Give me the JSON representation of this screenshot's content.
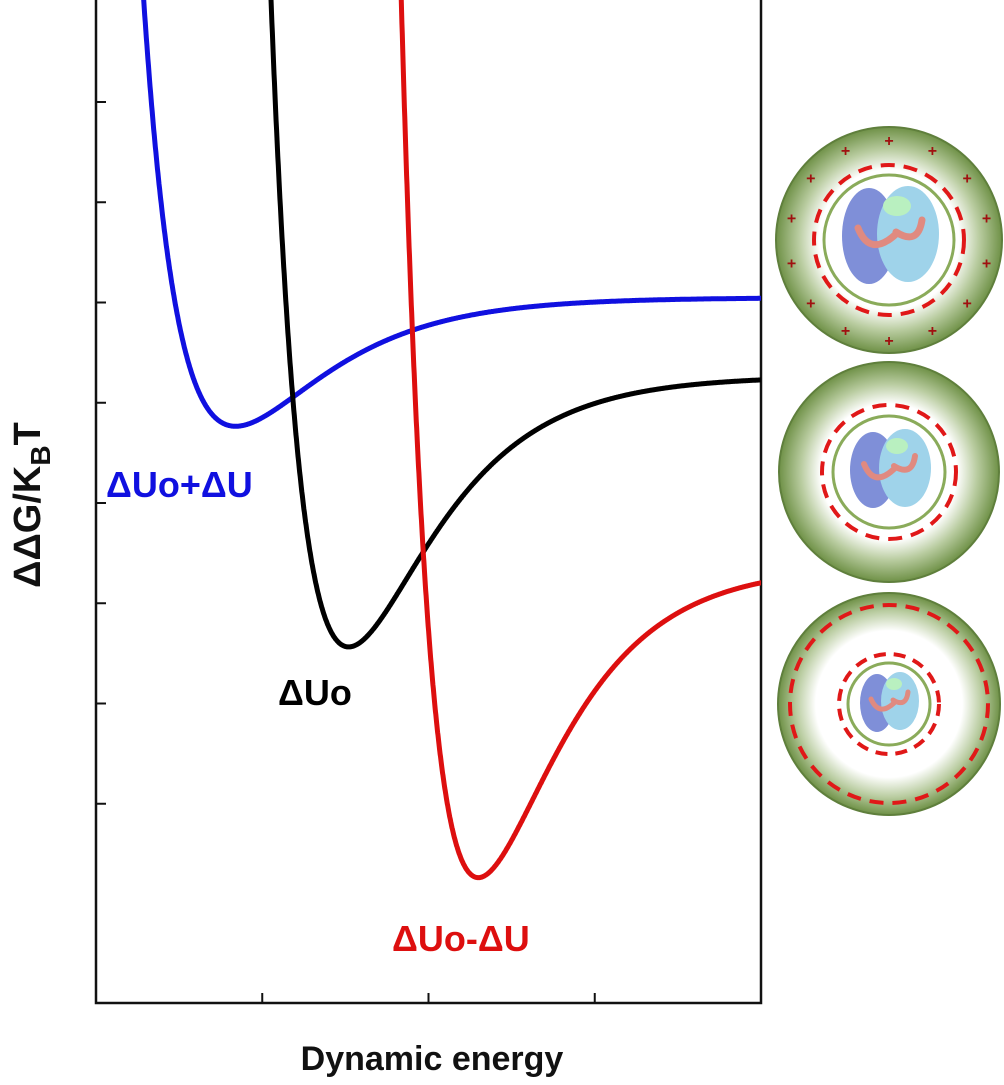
{
  "chart_data": {
    "type": "line",
    "title": "",
    "xlabel": "Dynamic energy",
    "ylabel_main": "ΔΔG/K",
    "ylabel_sub": "B",
    "ylabel_tail": "T",
    "x_ticks": 3,
    "y_ticks": 8,
    "grid": false,
    "series": [
      {
        "name": "ΔUo+ΔU",
        "color": "#1010e0",
        "min_x": 0.21,
        "min_y": 0.575,
        "wall_x": 0.065,
        "right_y": 0.67
      },
      {
        "name": "ΔUo",
        "color": "#000000",
        "min_x": 0.38,
        "min_y": 0.355,
        "wall_x": 0.26,
        "right_y": 0.555
      },
      {
        "name": "ΔUo-ΔU",
        "color": "#dd0f0f",
        "min_x": 0.575,
        "min_y": 0.125,
        "wall_x": 0.455,
        "right_y": 0.355
      }
    ]
  },
  "schematics": [
    {
      "name": "membrane-strong",
      "shell_color": "#7ea05a",
      "dash_color": "#e01818",
      "charges": "+"
    },
    {
      "name": "membrane-neutral",
      "shell_color": "#7ea05a",
      "dash_color": "#e01818",
      "charges": ""
    },
    {
      "name": "membrane-wide",
      "shell_color": "#7ea05a",
      "dash_color": "#e01818",
      "charges": ""
    }
  ]
}
